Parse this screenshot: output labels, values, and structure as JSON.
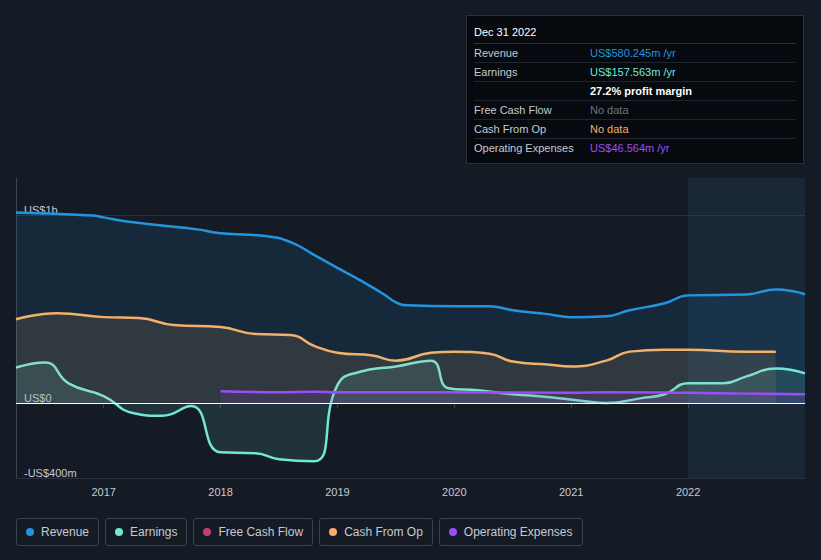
{
  "chart_data": {
    "type": "line",
    "xlim": [
      2016.25,
      2023.0
    ],
    "xticks": [
      2017,
      2018,
      2019,
      2020,
      2021,
      2022
    ],
    "ylim": [
      -400,
      1200
    ],
    "yticks": [
      {
        "value": -400,
        "label": "-US$400m"
      },
      {
        "value": 0,
        "label": "US$0"
      },
      {
        "value": 1000,
        "label": "US$1b"
      }
    ],
    "grid": true,
    "legend": "bottom",
    "series": [
      {
        "name": "Revenue",
        "color": "#2394df",
        "x": [
          2016.25,
          2016.9,
          2017.0,
          2017.2,
          2017.5,
          2017.8,
          2018.0,
          2018.4,
          2018.6,
          2018.8,
          2019.0,
          2019.2,
          2019.4,
          2019.5,
          2019.6,
          2020.0,
          2020.3,
          2020.5,
          2020.8,
          2021.0,
          2021.3,
          2021.5,
          2021.8,
          2022.0,
          2022.5,
          2022.75,
          2023.0
        ],
        "values": [
          1016,
          1000,
          990,
          968,
          947,
          926,
          905,
          889,
          858,
          790,
          721,
          653,
          579,
          537,
          521,
          516,
          516,
          495,
          474,
          458,
          463,
          495,
          532,
          574,
          579,
          605,
          580
        ]
      },
      {
        "name": "Earnings",
        "color": "#71e7d6",
        "x": [
          2016.25,
          2016.5,
          2016.7,
          2017.0,
          2017.25,
          2017.5,
          2017.75,
          2018.0,
          2018.3,
          2018.5,
          2018.8,
          2019.0,
          2019.2,
          2019.5,
          2019.8,
          2019.95,
          2020.2,
          2020.5,
          2020.8,
          2021.1,
          2021.3,
          2021.6,
          2021.8,
          2022.0,
          2022.3,
          2022.5,
          2022.75,
          2023.0
        ],
        "values": [
          189,
          216,
          105,
          37,
          -53,
          -68,
          -16,
          -263,
          -268,
          -300,
          -311,
          95,
          168,
          195,
          226,
          79,
          68,
          47,
          32,
          11,
          0,
          26,
          47,
          105,
          105,
          142,
          184,
          158
        ]
      },
      {
        "name": "Free Cash Flow",
        "color": "#c2416b",
        "x": [],
        "values": []
      },
      {
        "name": "Cash From Op",
        "color": "#f2b06b",
        "x": [
          2016.25,
          2016.6,
          2017.0,
          2017.3,
          2017.6,
          2018.0,
          2018.3,
          2018.6,
          2018.8,
          2019.0,
          2019.3,
          2019.5,
          2019.8,
          2020.0,
          2020.3,
          2020.5,
          2020.8,
          2021.0,
          2021.3,
          2021.5,
          2021.8,
          2022.0,
          2022.5,
          2022.75
        ],
        "values": [
          447,
          479,
          458,
          453,
          416,
          405,
          368,
          363,
          305,
          268,
          253,
          226,
          268,
          274,
          263,
          221,
          205,
          195,
          226,
          274,
          284,
          284,
          274,
          274
        ]
      },
      {
        "name": "Operating Expenses",
        "color": "#9d4df7",
        "x": [
          2018.0,
          2018.5,
          2018.8,
          2019.0,
          2020.0,
          2021.0,
          2021.3,
          2022.0,
          2022.5,
          2023.0
        ],
        "values": [
          63,
          58,
          60,
          58,
          58,
          55,
          58,
          55,
          50,
          47
        ]
      }
    ],
    "annotations": {
      "title": "Dec 31 2022",
      "rows": [
        {
          "label": "Revenue",
          "value": "US$580.245m /yr"
        },
        {
          "label": "Earnings",
          "value": "US$157.563m /yr"
        },
        {
          "value": "27.2% profit margin"
        },
        {
          "label": "Free Cash Flow",
          "value": "No data"
        },
        {
          "label": "Cash From Op",
          "value": "No data"
        },
        {
          "label": "Operating Expenses",
          "value": "US$46.564m /yr"
        }
      ]
    }
  }
}
